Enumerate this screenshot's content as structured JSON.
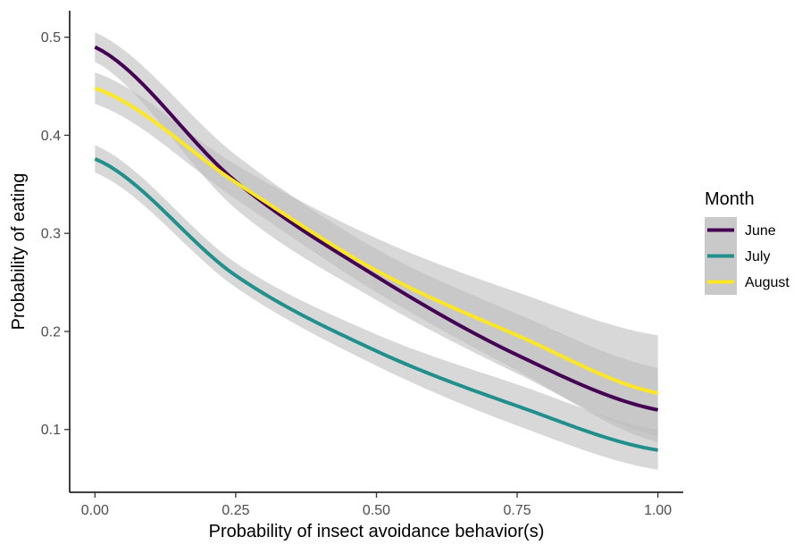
{
  "chart_data": {
    "type": "line",
    "xlabel": "Probability of insect avoidance behavior(s)",
    "ylabel": "Probability of eating",
    "xlim": [
      -0.045,
      1.045
    ],
    "ylim": [
      0.036,
      0.527
    ],
    "xticks": [
      0,
      0.25,
      0.5,
      0.75,
      1
    ],
    "xtick_labels": [
      "0.00",
      "0.25",
      "0.50",
      "0.75",
      "1.00"
    ],
    "yticks": [
      0.1,
      0.2,
      0.3,
      0.4,
      0.5
    ],
    "ytick_labels": [
      "0.1",
      "0.2",
      "0.3",
      "0.4",
      "0.5"
    ],
    "grid": false,
    "legend": {
      "title": "Month",
      "position": "right"
    },
    "band_color": "#bebebe",
    "x": [
      0,
      0.25,
      0.5,
      0.75,
      1
    ],
    "series": [
      {
        "name": "June",
        "color": "#440154",
        "values": [
          0.49,
          0.353,
          0.256,
          0.176,
          0.12
        ],
        "lower": [
          0.475,
          0.325,
          0.232,
          0.157,
          0.093
        ],
        "upper": [
          0.505,
          0.38,
          0.284,
          0.218,
          0.163
        ]
      },
      {
        "name": "July",
        "color": "#21908C",
        "values": [
          0.376,
          0.257,
          0.18,
          0.124,
          0.079
        ],
        "lower": [
          0.362,
          0.245,
          0.165,
          0.104,
          0.059
        ],
        "upper": [
          0.39,
          0.27,
          0.197,
          0.146,
          0.1
        ]
      },
      {
        "name": "August",
        "color": "#FDE725",
        "values": [
          0.448,
          0.352,
          0.262,
          0.196,
          0.137
        ],
        "lower": [
          0.432,
          0.335,
          0.24,
          0.16,
          0.087
        ],
        "upper": [
          0.464,
          0.37,
          0.295,
          0.24,
          0.196
        ]
      }
    ]
  }
}
